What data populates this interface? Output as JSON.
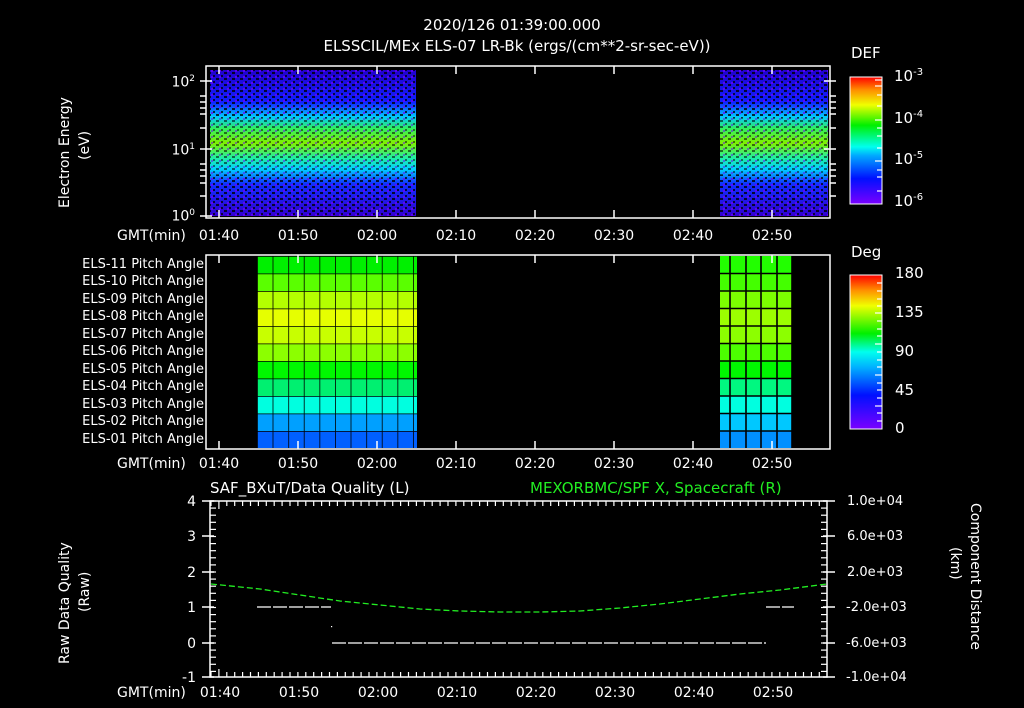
{
  "header": {
    "datetime": "2020/126 01:39:00.000",
    "title": "ELSSCIL/MEx ELS-07 LR-Bk  (ergs/(cm**2-sr-sec-eV))"
  },
  "time_axis": {
    "label": "GMT(min)",
    "ticks": [
      "01:40",
      "01:50",
      "02:00",
      "02:10",
      "02:20",
      "02:30",
      "02:40",
      "02:50"
    ]
  },
  "panel1": {
    "ylabel": "Electron Energy",
    "yunits": "(eV)",
    "yticks": [
      {
        "base": "10",
        "exp": "2"
      },
      {
        "base": "10",
        "exp": "1"
      },
      {
        "base": "10",
        "exp": "0"
      }
    ],
    "colorbar": {
      "title": "DEF",
      "ticks": [
        {
          "base": "10",
          "exp": "-3"
        },
        {
          "base": "10",
          "exp": "-4"
        },
        {
          "base": "10",
          "exp": "-5"
        },
        {
          "base": "10",
          "exp": "-6"
        }
      ]
    }
  },
  "panel2": {
    "rows": [
      "ELS-11 Pitch Angle",
      "ELS-10 Pitch Angle",
      "ELS-09 Pitch Angle",
      "ELS-08 Pitch Angle",
      "ELS-07 Pitch Angle",
      "ELS-06 Pitch Angle",
      "ELS-05 Pitch Angle",
      "ELS-04 Pitch Angle",
      "ELS-03 Pitch Angle",
      "ELS-02 Pitch Angle",
      "ELS-01 Pitch Angle"
    ],
    "colorbar": {
      "title": "Deg",
      "ticks": [
        "180",
        "135",
        "90",
        "45",
        "0"
      ]
    }
  },
  "panel3": {
    "left_title": "SAF_BXuT/Data Quality (L)",
    "right_title": "MEXORBMC/SPF X, Spacecraft (R)",
    "right_title_color": "#22ee22",
    "ylabel_left": "Raw Data Quality",
    "yunits_left": "(Raw)",
    "yticks_left": [
      "4",
      "3",
      "2",
      "1",
      "0",
      "-1"
    ],
    "ylabel_right": "Component Distance",
    "yunits_right": "(km)",
    "yticks_right": [
      "1.0e+04",
      "6.0e+03",
      "2.0e+03",
      "-2.0e+03",
      "-6.0e+03",
      "-1.0e+04"
    ]
  },
  "chart_data": [
    {
      "type": "heatmap",
      "title": "ELSSCIL/MEx ELS-07 LR-Bk (ergs/(cm**2-sr-sec-eV))",
      "xlabel": "GMT(min)",
      "ylabel": "Electron Energy (eV)",
      "yscale": "log",
      "ylim": [
        1,
        150
      ],
      "x_ticks": [
        "01:40",
        "01:50",
        "02:00",
        "02:10",
        "02:20",
        "02:30",
        "02:40",
        "02:50"
      ],
      "data_intervals": [
        [
          "01:39",
          "02:04"
        ],
        [
          "02:42",
          "02:56"
        ]
      ],
      "peak_energy_band_eV": [
        8,
        25
      ],
      "colorbar": {
        "label": "DEF",
        "scale": "log",
        "range": [
          1e-06,
          0.001
        ]
      }
    },
    {
      "type": "heatmap",
      "title": "ELS Pitch Angle",
      "xlabel": "GMT(min)",
      "categories": [
        "ELS-11",
        "ELS-10",
        "ELS-09",
        "ELS-08",
        "ELS-07",
        "ELS-06",
        "ELS-05",
        "ELS-04",
        "ELS-03",
        "ELS-02",
        "ELS-01"
      ],
      "data_intervals": [
        [
          "01:45",
          "02:04"
        ],
        [
          "02:42",
          "02:51"
        ]
      ],
      "approx_values_deg_interval1": [
        105,
        115,
        125,
        135,
        128,
        118,
        100,
        85,
        70,
        50,
        38
      ],
      "approx_values_deg_interval2": [
        105,
        112,
        120,
        128,
        122,
        115,
        100,
        85,
        70,
        58,
        48
      ],
      "colorbar": {
        "label": "Deg",
        "range": [
          0,
          180
        ],
        "ticks": [
          0,
          45,
          90,
          135,
          180
        ]
      }
    },
    {
      "type": "line",
      "xlabel": "GMT(min)",
      "x_ticks": [
        "01:40",
        "01:50",
        "02:00",
        "02:10",
        "02:20",
        "02:30",
        "02:40",
        "02:50"
      ],
      "series": [
        {
          "name": "SAF_BXuT/Data Quality (L)",
          "axis": "left",
          "color": "#ffffff",
          "segments": [
            {
              "x": [
                "01:45",
                "01:54"
              ],
              "y": 1
            },
            {
              "x": [
                "01:54",
                "02:47"
              ],
              "y": 0
            },
            {
              "x": [
                "02:47",
                "02:50"
              ],
              "y": 1
            }
          ]
        },
        {
          "name": "MEXORBMC/SPF X, Spacecraft (R)",
          "axis": "right",
          "color": "#22ee22",
          "x": [
            "01:39",
            "01:45",
            "01:50",
            "01:55",
            "02:00",
            "02:05",
            "02:10",
            "02:15",
            "02:20",
            "02:25",
            "02:30",
            "02:35",
            "02:40",
            "02:45",
            "02:50",
            "02:56"
          ],
          "y": [
            900,
            400,
            -100,
            -600,
            -1100,
            -1500,
            -1900,
            -2050,
            -2050,
            -1900,
            -1500,
            -1000,
            -500,
            0,
            400,
            900
          ]
        }
      ],
      "ylim_left": [
        -1,
        4
      ],
      "ylim_right": [
        -10000,
        10000
      ]
    }
  ]
}
